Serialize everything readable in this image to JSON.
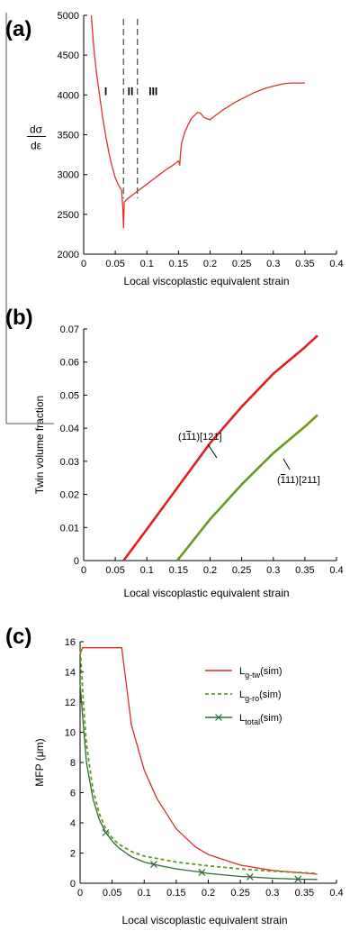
{
  "chart_data": [
    {
      "type": "line",
      "panel": "(a)",
      "xlabel": "Local viscoplastic equivalent  strain",
      "ylabel_num": "dσ",
      "ylabel_den": "dε",
      "xlim": [
        0,
        0.4
      ],
      "ylim": [
        2000,
        5000
      ],
      "x_ticks": [
        "0",
        "0.05",
        "0.1",
        "0.15",
        "0.2",
        "0.25",
        "0.3",
        "0.35",
        "0.4"
      ],
      "y_ticks": [
        "2000",
        "2500",
        "3000",
        "3500",
        "4000",
        "4500",
        "5000"
      ],
      "regions": [
        {
          "label": "I",
          "x": 0.035
        },
        {
          "label": "II",
          "x": 0.074
        },
        {
          "label": "III",
          "x": 0.11
        }
      ],
      "boundaries": [
        0.063,
        0.085
      ],
      "color": "#e0302e",
      "series": [
        {
          "x": [
            0.012,
            0.016,
            0.02,
            0.025,
            0.03,
            0.035,
            0.04,
            0.045,
            0.05,
            0.055,
            0.06,
            0.062,
            0.063,
            0.064,
            0.064,
            0.065,
            0.07,
            0.08,
            0.09,
            0.1,
            0.11,
            0.12,
            0.13,
            0.14,
            0.15,
            0.152,
            0.153,
            0.155,
            0.16,
            0.165,
            0.17,
            0.175,
            0.18,
            0.185,
            0.19,
            0.195,
            0.2,
            0.21,
            0.22,
            0.23,
            0.24,
            0.25,
            0.26,
            0.27,
            0.28,
            0.29,
            0.3,
            0.31,
            0.32,
            0.33,
            0.34,
            0.35
          ],
          "y": [
            5000,
            4600,
            4300,
            4000,
            3720,
            3480,
            3270,
            3100,
            2960,
            2870,
            2800,
            2560,
            2330,
            2600,
            2650,
            2660,
            2700,
            2760,
            2820,
            2880,
            2940,
            3000,
            3060,
            3110,
            3170,
            3120,
            3250,
            3400,
            3530,
            3620,
            3700,
            3740,
            3780,
            3770,
            3720,
            3700,
            3690,
            3750,
            3810,
            3860,
            3910,
            3950,
            3990,
            4030,
            4060,
            4090,
            4110,
            4130,
            4145,
            4150,
            4150,
            4150
          ]
        }
      ]
    },
    {
      "type": "line",
      "panel": "(b)",
      "xlabel": "Local viscoplastic equivalent  strain",
      "ylabel": "Twin volume fraction",
      "xlim": [
        0,
        0.4
      ],
      "ylim": [
        0,
        0.07
      ],
      "x_ticks": [
        "0",
        "0.05",
        "0.1",
        "0.15",
        "0.2",
        "0.25",
        "0.3",
        "0.35",
        "0.4"
      ],
      "y_ticks": [
        "0",
        "0.01",
        "0.02",
        "0.03",
        "0.04",
        "0.05",
        "0.06",
        "0.07"
      ],
      "series": [
        {
          "label": "(1̄11)[121]",
          "label_parts": [
            "(1",
            "1",
            "1)[121]"
          ],
          "color": "#e01e1e",
          "x": [
            0.063,
            0.1,
            0.15,
            0.2,
            0.25,
            0.3,
            0.35,
            0.37
          ],
          "y": [
            0,
            0.0095,
            0.0225,
            0.0355,
            0.0465,
            0.0565,
            0.0645,
            0.068
          ]
        },
        {
          "label": "(1̄11)[211]",
          "label_parts": [
            "(",
            "1",
            "11)[211]"
          ],
          "color": "#6a9a1c",
          "x": [
            0.148,
            0.2,
            0.25,
            0.3,
            0.35,
            0.37
          ],
          "y": [
            0,
            0.0125,
            0.023,
            0.0325,
            0.0405,
            0.044
          ]
        }
      ]
    },
    {
      "type": "line",
      "panel": "(c)",
      "xlabel": "Local viscoplastic equivalent  strain",
      "ylabel": "MFP (μm)",
      "xlim": [
        0,
        0.4
      ],
      "ylim": [
        0,
        16
      ],
      "x_ticks": [
        "0",
        "0.05",
        "0.1",
        "0.15",
        "0.2",
        "0.25",
        "0.3",
        "0.35",
        "0.4"
      ],
      "y_ticks": [
        "0",
        "2",
        "4",
        "6",
        "8",
        "10",
        "12",
        "14",
        "16"
      ],
      "series": [
        {
          "label": "Lg-tw(sim)",
          "label_main": "L",
          "label_sub": "g-tw",
          "label_tail": "(sim)",
          "color": "#e02a2a",
          "style": "solid",
          "x": [
            0,
            0.004,
            0.02,
            0.04,
            0.06,
            0.065,
            0.08,
            0.1,
            0.12,
            0.15,
            0.18,
            0.2,
            0.25,
            0.3,
            0.37
          ],
          "y": [
            15.2,
            15.6,
            15.6,
            15.6,
            15.6,
            15.6,
            10.5,
            7.5,
            5.6,
            3.6,
            2.4,
            1.9,
            1.2,
            0.85,
            0.6
          ]
        },
        {
          "label": "Lg-ro(sim)",
          "label_main": "L",
          "label_sub": "g-ro",
          "label_tail": "(sim)",
          "color": "#5f9a1a",
          "style": "dashed",
          "x": [
            0,
            0.005,
            0.01,
            0.02,
            0.03,
            0.04,
            0.05,
            0.06,
            0.08,
            0.1,
            0.15,
            0.2,
            0.25,
            0.3,
            0.37
          ],
          "y": [
            15.8,
            12.0,
            9.2,
            6.2,
            4.6,
            3.6,
            3.0,
            2.6,
            2.1,
            1.8,
            1.4,
            1.15,
            0.95,
            0.8,
            0.65
          ]
        },
        {
          "label": "Ltotal(sim)",
          "label_main": "L",
          "label_sub": "total",
          "label_tail": "(sim)",
          "color": "#2e6b33",
          "style": "solid-x",
          "x": [
            0,
            0.005,
            0.01,
            0.02,
            0.03,
            0.04,
            0.05,
            0.06,
            0.08,
            0.1,
            0.115,
            0.15,
            0.19,
            0.2,
            0.25,
            0.265,
            0.3,
            0.34,
            0.37
          ],
          "y": [
            13.2,
            10.5,
            8.0,
            5.6,
            4.2,
            3.35,
            2.8,
            2.35,
            1.75,
            1.4,
            1.25,
            0.95,
            0.72,
            0.65,
            0.45,
            0.42,
            0.33,
            0.27,
            0.25
          ],
          "markers_x": [
            0.04,
            0.115,
            0.19,
            0.265,
            0.34
          ]
        }
      ]
    }
  ]
}
